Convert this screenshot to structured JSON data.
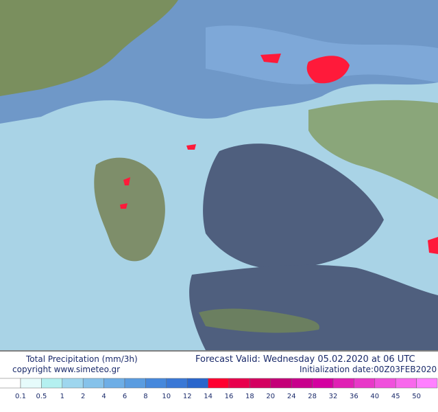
{
  "header": {
    "title": "Total Precipitation (mm/3h)",
    "valid": "Forecast Valid:  Wednesday 05.02.2020 at 06 UTC",
    "copyright": "copyright www.simeteo.gr",
    "init": "Initialization date:00Z03FEB2020"
  },
  "legend": {
    "levels": [
      0.1,
      0.5,
      1,
      2,
      4,
      6,
      8,
      10,
      12,
      14,
      16,
      18,
      20,
      24,
      28,
      32,
      36,
      40,
      45,
      50
    ],
    "colors": [
      "#ffffff",
      "#e6fbfb",
      "#b4f0f0",
      "#9ed6ee",
      "#86c2ea",
      "#6eaee6",
      "#5a9ce0",
      "#4688dc",
      "#3a78d6",
      "#2a66cc",
      "#ff0030",
      "#e8004c",
      "#d40060",
      "#c40078",
      "#c8008c",
      "#d400a0",
      "#e020b4",
      "#e838c8",
      "#f050dc",
      "#f868ec",
      "#ff80ff"
    ]
  }
}
